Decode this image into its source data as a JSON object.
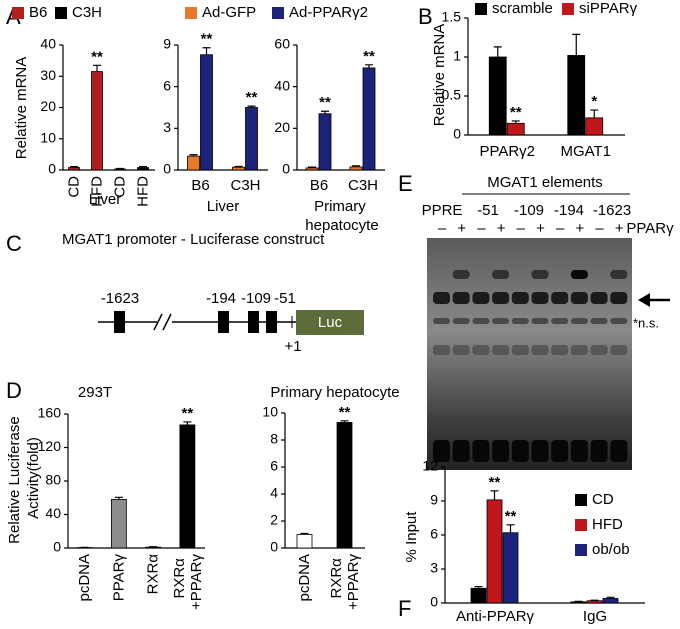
{
  "panel_labels": [
    "A",
    "B",
    "C",
    "D",
    "E",
    "F"
  ],
  "chart_data": [
    {
      "type": "bar",
      "title": "Liver",
      "y_label": "Relative mRNA",
      "categories": [
        "CD",
        "HFD",
        "CD",
        "HFD"
      ],
      "ylim": [
        0,
        40
      ],
      "yticks": [
        0,
        10,
        20,
        30,
        40
      ],
      "series": [
        {
          "name": "B6",
          "color": "#b01e1e",
          "values": [
            0.8,
            31.5,
            null,
            null
          ],
          "errors": [
            0.3,
            2.0,
            null,
            null
          ],
          "annotations": [
            null,
            "**",
            null,
            null
          ]
        },
        {
          "name": "C3H",
          "color": "#000000",
          "values": [
            null,
            null,
            0.3,
            0.8
          ],
          "errors": [
            null,
            null,
            0.2,
            0.3
          ],
          "annotations": [
            null,
            null,
            null,
            null
          ]
        }
      ]
    },
    {
      "type": "bar",
      "title": "Liver",
      "categories": [
        "B6",
        "C3H"
      ],
      "ylim": [
        0,
        9
      ],
      "yticks": [
        0,
        3,
        6,
        9
      ],
      "series": [
        {
          "name": "Ad-GFP",
          "color": "#e8792b",
          "values": [
            1.0,
            0.2
          ],
          "errors": [
            0.1,
            0.05
          ],
          "annotations": [
            null,
            null
          ]
        },
        {
          "name": "Ad-PPARγ2",
          "color": "#1c237a",
          "values": [
            8.3,
            4.5
          ],
          "errors": [
            0.5,
            0.1
          ],
          "annotations": [
            "**",
            "**"
          ]
        }
      ]
    },
    {
      "type": "bar",
      "title": "Primary hepatocyte",
      "categories": [
        "B6",
        "C3H"
      ],
      "ylim": [
        0,
        60
      ],
      "yticks": [
        0,
        20,
        40,
        60
      ],
      "series": [
        {
          "color": "#e8792b",
          "values": [
            1.0,
            1.5
          ],
          "errors": [
            0.4,
            0.5
          ],
          "annotations": [
            null,
            null
          ]
        },
        {
          "color": "#1c237a",
          "values": [
            27,
            49
          ],
          "errors": [
            1.2,
            1.5
          ],
          "annotations": [
            "**",
            "**"
          ]
        }
      ]
    },
    {
      "type": "bar",
      "y_label": "Relative mRNA",
      "categories": [
        "PPARγ2",
        "MGAT1"
      ],
      "ylim": [
        0,
        1.5
      ],
      "yticks": [
        0,
        0.5,
        1,
        1.5
      ],
      "series": [
        {
          "name": "scramble",
          "color": "#000000",
          "values": [
            1.0,
            1.02
          ],
          "errors": [
            0.13,
            0.27
          ],
          "annotations": [
            null,
            null
          ]
        },
        {
          "name": "siPPARγ",
          "color": "#c0151b",
          "values": [
            0.15,
            0.22
          ],
          "errors": [
            0.03,
            0.1
          ],
          "annotations": [
            "**",
            "*"
          ]
        }
      ]
    },
    {
      "type": "bar",
      "title": "293T",
      "y_label": "Relative Luciferase Activity(fold)",
      "categories": [
        "pcDNA",
        "PPARγ",
        "RXRα",
        "RXRα +PPARγ"
      ],
      "ylim": [
        0,
        160
      ],
      "yticks": [
        0,
        40,
        80,
        120,
        160
      ],
      "values": [
        0.5,
        58,
        1,
        147
      ],
      "errors": [
        0.3,
        2.5,
        0.5,
        3.5
      ],
      "colors": [
        "#ffffff",
        "#8c8c8c",
        "#ffffff",
        "#000000"
      ],
      "annotations": [
        null,
        null,
        null,
        "**"
      ]
    },
    {
      "type": "bar",
      "title": "Primary hepatocyte",
      "categories": [
        "pcDNA",
        "RXRα +PPARγ"
      ],
      "ylim": [
        0,
        10
      ],
      "yticks": [
        0,
        2,
        4,
        6,
        8,
        10
      ],
      "values": [
        1.0,
        9.3
      ],
      "errors": [
        0.08,
        0.12
      ],
      "colors": [
        "#ffffff",
        "#000000"
      ],
      "annotations": [
        null,
        "**"
      ]
    },
    {
      "type": "bar",
      "y_label": "% Input",
      "categories": [
        "Anti-PPARγ",
        "IgG"
      ],
      "ylim": [
        0,
        12
      ],
      "yticks": [
        0,
        3,
        6,
        9,
        12
      ],
      "series": [
        {
          "name": "CD",
          "color": "#000000",
          "values": [
            1.3,
            0.1
          ],
          "errors": [
            0.15,
            0.05
          ],
          "annotations": [
            null,
            null
          ]
        },
        {
          "name": "HFD",
          "color": "#c0151b",
          "values": [
            9.1,
            0.2
          ],
          "errors": [
            0.8,
            0.05
          ],
          "annotations": [
            "**",
            null
          ]
        },
        {
          "name": "ob/ob",
          "color": "#1c237a",
          "values": [
            6.2,
            0.4
          ],
          "errors": [
            0.7,
            0.1
          ],
          "annotations": [
            "**",
            null
          ]
        }
      ]
    }
  ],
  "construct": {
    "title": "MGAT1 promoter - Luciferase construct",
    "elements": [
      "-1623",
      "-194",
      "-109",
      "-51"
    ],
    "reporter": "Luc",
    "start": "+1"
  },
  "emsa": {
    "header": "MGAT1 elements",
    "lanes": [
      "PPRE",
      "-51",
      "-109",
      "-194",
      "-1623"
    ],
    "signs": [
      "–",
      "+"
    ],
    "treatment": "PPARγ",
    "nonspecific": "*n.s."
  }
}
